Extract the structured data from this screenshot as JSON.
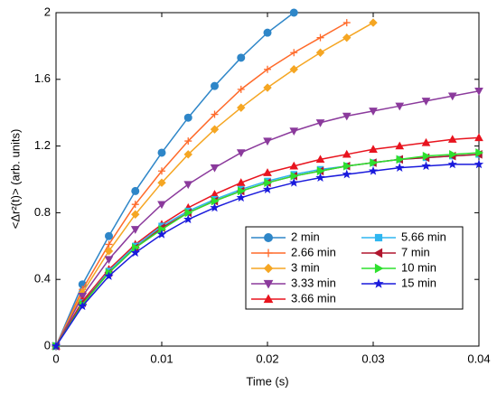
{
  "chart_data": {
    "type": "line",
    "xlabel": "Time (s)",
    "ylabel": "<Δr²(t)> (arb. units)",
    "x": [
      0,
      0.0025,
      0.005,
      0.0075,
      0.01,
      0.0125,
      0.015,
      0.0175,
      0.02,
      0.0225,
      0.025,
      0.0275,
      0.03,
      0.0325,
      0.035,
      0.0375,
      0.04
    ],
    "xlim": [
      0,
      0.04
    ],
    "xticks": [
      0,
      0.01,
      0.02,
      0.03,
      0.04
    ],
    "ylim": [
      0,
      2
    ],
    "yticks": [
      0,
      0.4,
      0.8,
      1.2,
      1.6,
      2
    ],
    "legend": "lower right",
    "series": [
      {
        "name": "2 min",
        "color": "#2e86c8",
        "marker": "circle",
        "values": [
          0,
          0.37,
          0.66,
          0.93,
          1.16,
          1.37,
          1.56,
          1.73,
          1.88,
          2.0,
          null,
          null,
          null,
          null,
          null,
          null,
          null
        ]
      },
      {
        "name": "2.66 min",
        "color": "#ff6a2a",
        "marker": "plus",
        "values": [
          0,
          0.34,
          0.61,
          0.85,
          1.05,
          1.23,
          1.39,
          1.54,
          1.66,
          1.76,
          1.85,
          1.94,
          null,
          null,
          null,
          null,
          null
        ]
      },
      {
        "name": "3 min",
        "color": "#f5a623",
        "marker": "diamond",
        "values": [
          0,
          0.32,
          0.57,
          0.79,
          0.98,
          1.15,
          1.3,
          1.43,
          1.55,
          1.66,
          1.76,
          1.85,
          1.94,
          null,
          null,
          null,
          null
        ]
      },
      {
        "name": "3.33 min",
        "color": "#8b3a9c",
        "marker": "tri-down",
        "values": [
          0,
          0.3,
          0.52,
          0.7,
          0.85,
          0.97,
          1.07,
          1.16,
          1.23,
          1.29,
          1.34,
          1.38,
          1.41,
          1.44,
          1.47,
          1.5,
          1.53
        ]
      },
      {
        "name": "3.66 min",
        "color": "#e8141e",
        "marker": "tri-up",
        "values": [
          0,
          0.27,
          0.46,
          0.61,
          0.73,
          0.83,
          0.91,
          0.98,
          1.04,
          1.08,
          1.12,
          1.15,
          1.18,
          1.2,
          1.22,
          1.24,
          1.25
        ]
      },
      {
        "name": "5.66 min",
        "color": "#2fb6f0",
        "marker": "square",
        "values": [
          0,
          0.26,
          0.45,
          0.6,
          0.72,
          0.81,
          0.88,
          0.94,
          0.99,
          1.03,
          1.06,
          1.08,
          1.1,
          1.12,
          1.13,
          1.14,
          1.15
        ]
      },
      {
        "name": "7 min",
        "color": "#b0162e",
        "marker": "tri-left",
        "values": [
          0,
          0.26,
          0.44,
          0.59,
          0.71,
          0.8,
          0.87,
          0.93,
          0.98,
          1.02,
          1.05,
          1.08,
          1.1,
          1.12,
          1.13,
          1.14,
          1.15
        ]
      },
      {
        "name": "10 min",
        "color": "#2ee02e",
        "marker": "tri-right",
        "values": [
          0,
          0.25,
          0.44,
          0.59,
          0.7,
          0.8,
          0.87,
          0.93,
          0.98,
          1.02,
          1.05,
          1.08,
          1.1,
          1.12,
          1.14,
          1.15,
          1.16
        ]
      },
      {
        "name": "15 min",
        "color": "#1a1adc",
        "marker": "star",
        "values": [
          0,
          0.24,
          0.42,
          0.56,
          0.67,
          0.76,
          0.83,
          0.89,
          0.94,
          0.98,
          1.01,
          1.03,
          1.05,
          1.07,
          1.08,
          1.09,
          1.09
        ]
      }
    ]
  }
}
